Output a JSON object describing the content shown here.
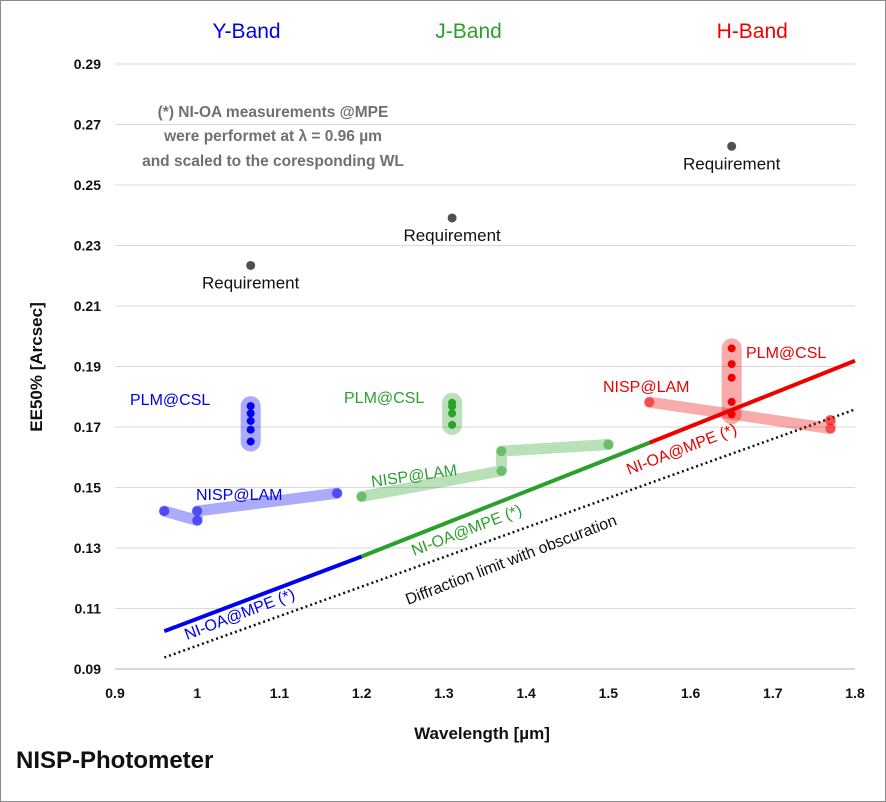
{
  "chart_data": {
    "type": "line",
    "xlabel": "Wavelength [µm]",
    "ylabel": "EE50% [Arcsec]",
    "xlim": [
      0.9,
      1.8
    ],
    "ylim": [
      0.09,
      0.29
    ],
    "xticks": [
      0.9,
      1.0,
      1.1,
      1.2,
      1.3,
      1.4,
      1.5,
      1.6,
      1.7,
      1.8
    ],
    "xtick_labels": [
      "0.9",
      "1",
      "1.1",
      "1.2",
      "1.3",
      "1.4",
      "1.5",
      "1.6",
      "1.7",
      "1.8"
    ],
    "yticks": [
      0.09,
      0.11,
      0.13,
      0.15,
      0.17,
      0.19,
      0.21,
      0.23,
      0.25,
      0.27,
      0.29
    ],
    "ytick_labels": [
      "0.09",
      "0.11",
      "0.13",
      "0.15",
      "0.17",
      "0.19",
      "0.21",
      "0.23",
      "0.25",
      "0.27",
      "0.29"
    ],
    "grid": "horizontal",
    "colors": {
      "Y": "#0000ee",
      "J": "#2ca02c",
      "H": "#ee0000",
      "requirement": "#505050"
    },
    "bands": [
      {
        "label": "Y-Band",
        "color": "#0000ee",
        "x": 1.06
      },
      {
        "label": "J-Band",
        "color": "#2ca02c",
        "x": 1.33
      },
      {
        "label": "H-Band",
        "color": "#ee0000",
        "x": 1.675
      }
    ],
    "requirements": [
      {
        "x": 1.065,
        "y": 0.2234,
        "label": "Requirement"
      },
      {
        "x": 1.31,
        "y": 0.2391,
        "label": "Requirement"
      },
      {
        "x": 1.65,
        "y": 0.2628,
        "label": "Requirement"
      }
    ],
    "nioa_segments": [
      {
        "band": "Y",
        "x": [
          0.96,
          1.2
        ],
        "y": [
          0.1025,
          0.1272
        ]
      },
      {
        "band": "J",
        "x": [
          1.2,
          1.55
        ],
        "y": [
          0.1272,
          0.1648
        ]
      },
      {
        "band": "H",
        "x": [
          1.55,
          1.8
        ],
        "y": [
          0.1648,
          0.1919
        ]
      }
    ],
    "diffraction_limit": {
      "x": [
        0.96,
        1.8
      ],
      "y": [
        0.0938,
        0.1758
      ]
    },
    "nisp_lam": [
      {
        "band": "Y",
        "x": [
          0.96,
          1.0,
          1.0,
          1.17
        ],
        "y": [
          0.1422,
          0.1391,
          0.1422,
          0.1481
        ]
      },
      {
        "band": "J",
        "x": [
          1.2,
          1.37,
          1.37,
          1.5
        ],
        "y": [
          0.147,
          0.1555,
          0.162,
          0.1642
        ]
      },
      {
        "band": "H",
        "x": [
          1.55,
          1.77,
          1.77
        ],
        "y": [
          0.1782,
          0.1695,
          0.1722
        ]
      }
    ],
    "plm_csl": [
      {
        "band": "Y",
        "x": 1.065,
        "y": [
          0.1652,
          0.1691,
          0.172,
          0.1745,
          0.1769
        ]
      },
      {
        "band": "J",
        "x": 1.31,
        "y": [
          0.1707,
          0.1745,
          0.1768,
          0.178
        ]
      },
      {
        "band": "H",
        "x": 1.65,
        "y": [
          0.1742,
          0.1783,
          0.1863,
          0.1908,
          0.196
        ]
      }
    ],
    "annotations": {
      "nioa_y": "NI-OA@MPE (*)",
      "nioa_j": "NI-OA@MPE (*)",
      "nioa_h": "NI-OA@MPE (*)",
      "diffraction": "Diffraction limit with obscuration",
      "nisp_lam_y": "NISP@LAM",
      "nisp_lam_j": "NISP@LAM",
      "nisp_lam_h": "NISP@LAM",
      "plm_csl_y": "PLM@CSL",
      "plm_csl_j": "PLM@CSL",
      "plm_csl_h": "PLM@CSL",
      "note_lines": [
        "(*) NI-OA measurements @MPE",
        "were performet at λ = 0.96 µm",
        "and scaled to the coresponding WL"
      ]
    }
  },
  "footer_title": "NISP-Photometer"
}
